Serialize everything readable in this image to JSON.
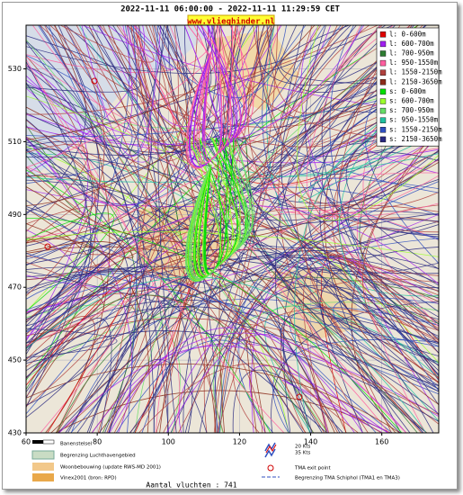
{
  "header": {
    "title": "2022-11-11 06:00:00 - 2022-11-11 11:29:59 CET",
    "url": "www.vlieghinder.nl"
  },
  "chart_data": {
    "type": "track-map",
    "xlim": [
      60,
      176
    ],
    "ylim": [
      430,
      542
    ],
    "xticks": [
      60,
      80,
      100,
      120,
      140,
      160
    ],
    "yticks": [
      430,
      450,
      470,
      490,
      510,
      530
    ],
    "grid": true,
    "legend": "top-right",
    "series": [
      {
        "name": "l: 0-600m",
        "color": "#e00000"
      },
      {
        "name": "l: 600-700m",
        "color": "#a020f0"
      },
      {
        "name": "l: 700-950m",
        "color": "#2e7d32"
      },
      {
        "name": "l: 950-1550m",
        "color": "#ff5fa0"
      },
      {
        "name": "l: 1550-2150m",
        "color": "#b0413e"
      },
      {
        "name": "l: 2150-3650m",
        "color": "#8b2c1a"
      },
      {
        "name": "s: 0-600m",
        "color": "#00e000"
      },
      {
        "name": "s: 600-700m",
        "color": "#9aff2a"
      },
      {
        "name": "s: 700-950m",
        "color": "#66dd66"
      },
      {
        "name": "s: 950-1550m",
        "color": "#20c0a0"
      },
      {
        "name": "s: 1550-2150m",
        "color": "#3050c0"
      },
      {
        "name": "s: 2150-3650m",
        "color": "#2a2a80"
      }
    ]
  },
  "map_legend": {
    "left": [
      "Banenstelsel",
      "Begrenzing Luchthavengebied",
      "Woonbebouwing (update RWS-MD 2001)",
      "Vinex2001 (bron: RPD)"
    ],
    "wind": [
      "20 Kts",
      "35 Kts"
    ],
    "tma_exit": "TMA exit point",
    "tma_border": "Begrenzing TMA Schiphol  (TMA1 en TMA3)"
  },
  "footer": "Aantal vluchten : 741"
}
